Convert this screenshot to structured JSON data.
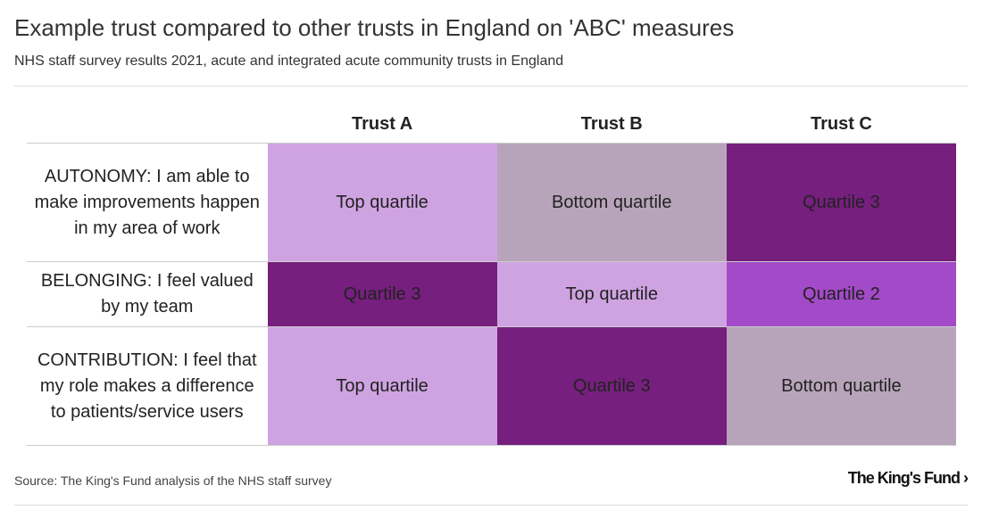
{
  "title": "Example trust compared to other trusts in England on 'ABC' measures",
  "subtitle": "NHS staff survey results 2021, acute and integrated acute community trusts in England",
  "source": "Source: The King's Fund analysis of the NHS staff survey",
  "logo": "The King's Fund",
  "colors": {
    "Top quartile": "#cfa3e2",
    "Bottom quartile": "#b8a4ba",
    "Quartile 3": "#761f7e",
    "Quartile 2": "#a24ac7"
  },
  "chart_data": {
    "type": "heatmap",
    "columns": [
      "Trust A",
      "Trust B",
      "Trust C"
    ],
    "rows": [
      {
        "label": "AUTONOMY: I am able to make improvements happen in my area of work",
        "values": [
          "Top quartile",
          "Bottom quartile",
          "Quartile 3"
        ]
      },
      {
        "label": "BELONGING: I feel valued by my team",
        "values": [
          "Quartile 3",
          "Top quartile",
          "Quartile 2"
        ]
      },
      {
        "label": "CONTRIBUTION: I feel that my role makes a difference to patients/service users",
        "values": [
          "Top quartile",
          "Quartile 3",
          "Bottom quartile"
        ]
      }
    ]
  }
}
